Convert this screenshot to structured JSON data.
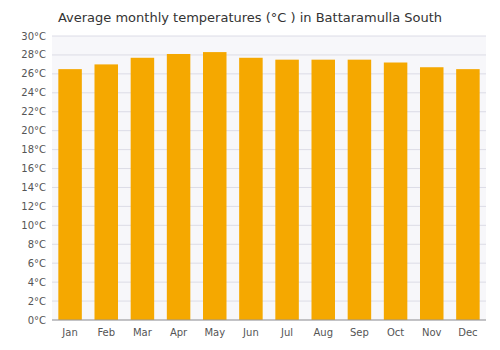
{
  "chart_data": {
    "type": "bar",
    "title": "Average monthly temperatures (°C ) in Battaramulla South",
    "categories": [
      "Jan",
      "Feb",
      "Mar",
      "Apr",
      "May",
      "Jun",
      "Jul",
      "Aug",
      "Sep",
      "Oct",
      "Nov",
      "Dec"
    ],
    "values": [
      26.5,
      27.0,
      27.7,
      28.1,
      28.3,
      27.7,
      27.5,
      27.5,
      27.5,
      27.2,
      26.7,
      26.5
    ],
    "color": "#F5A800",
    "ylim": [
      0,
      30
    ],
    "yticks": [
      {
        "value": 0,
        "label": "0°C"
      },
      {
        "value": 2,
        "label": "2°C"
      },
      {
        "value": 4,
        "label": "4°C"
      },
      {
        "value": 6,
        "label": "6°C"
      },
      {
        "value": 8,
        "label": "8°C"
      },
      {
        "value": 10,
        "label": "10°C"
      },
      {
        "value": 12,
        "label": "12°C"
      },
      {
        "value": 14,
        "label": "14°C"
      },
      {
        "value": 16,
        "label": "16°C"
      },
      {
        "value": 18,
        "label": "18°C"
      },
      {
        "value": 20,
        "label": "20°C"
      },
      {
        "value": 22,
        "label": "22°C"
      },
      {
        "value": 24,
        "label": "24°C"
      },
      {
        "value": 26,
        "label": "26°C"
      },
      {
        "value": 28,
        "label": "28°C"
      },
      {
        "value": 30,
        "label": "30°C"
      }
    ],
    "grid": true
  }
}
